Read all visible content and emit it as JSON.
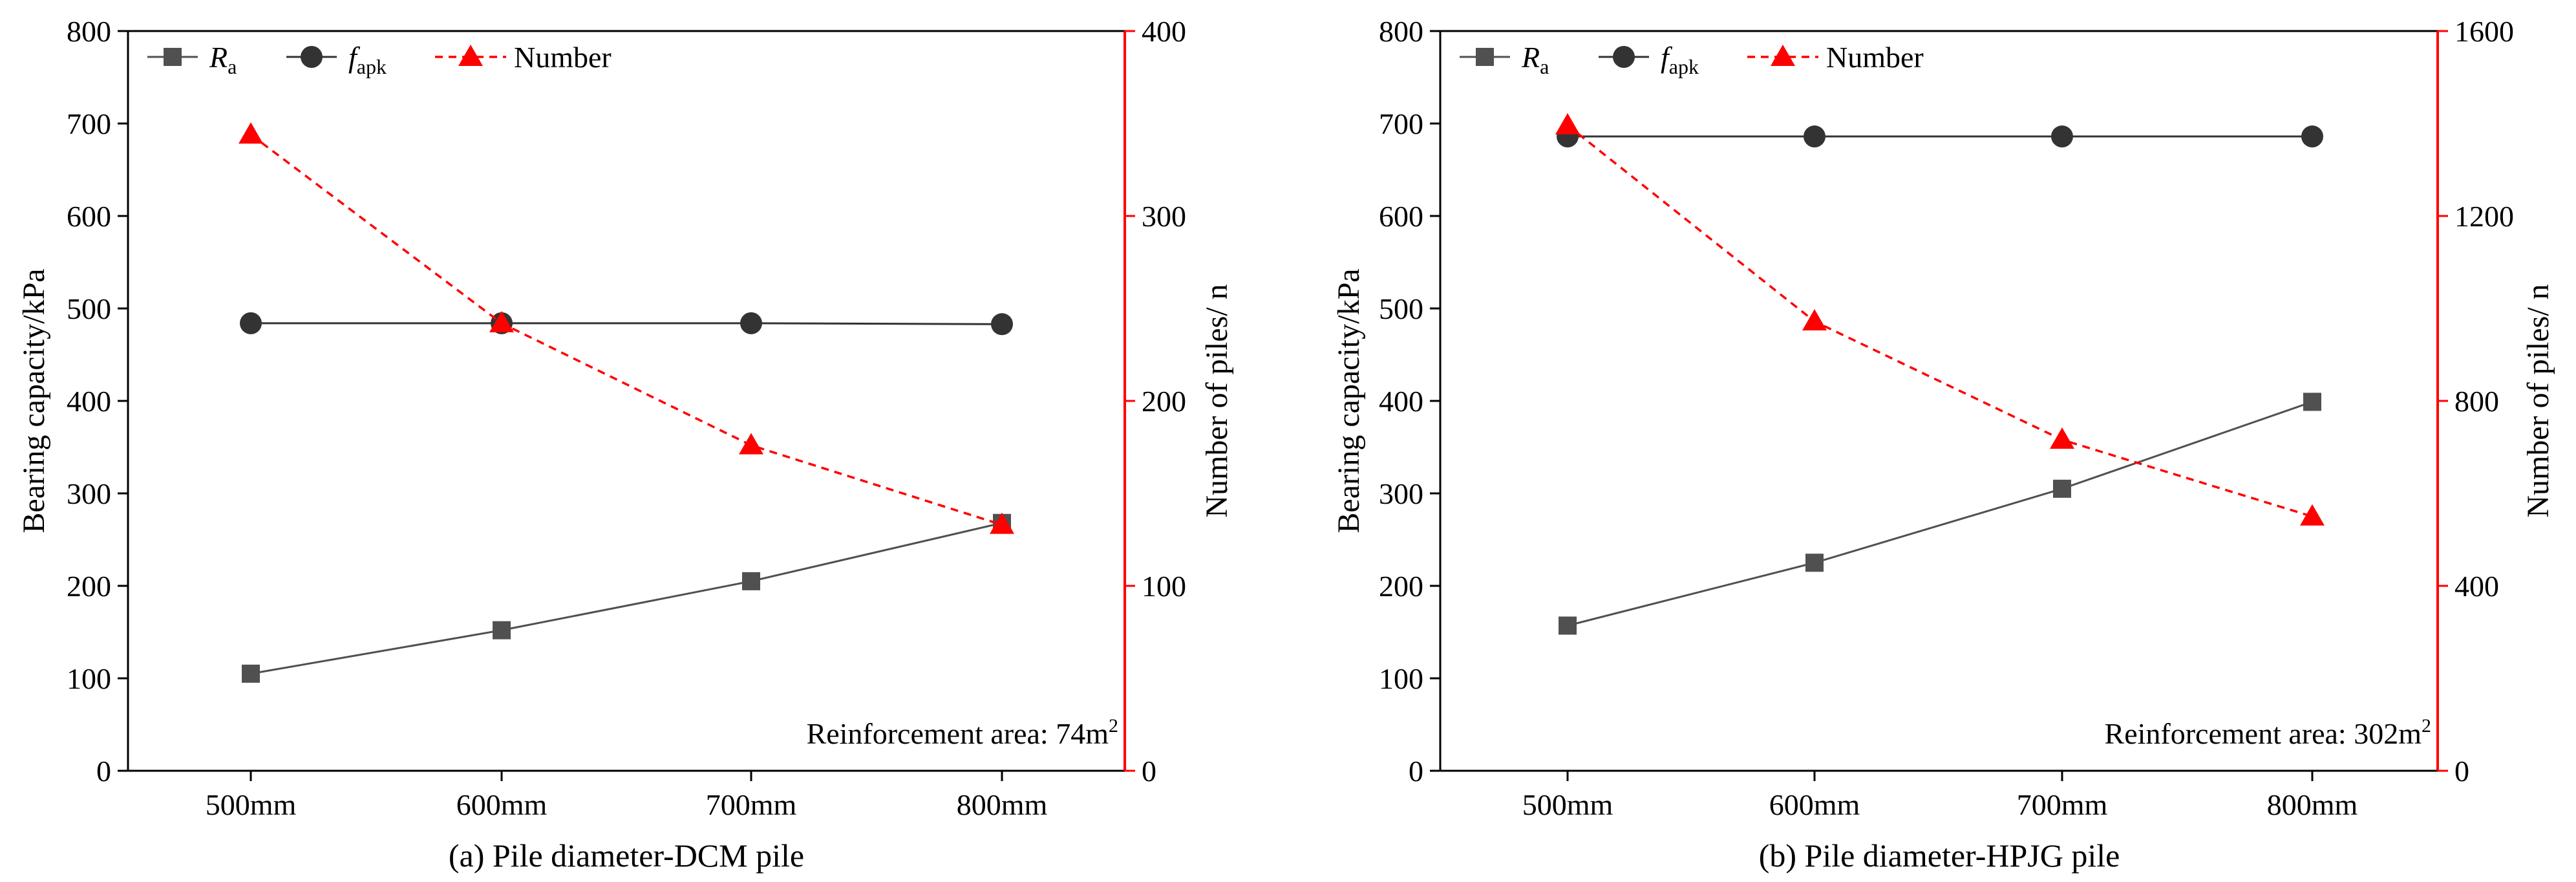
{
  "colors": {
    "ra": "#505050",
    "fapk": "#333333",
    "number": "#ff0000",
    "axis": "#000000",
    "right_axis": "#ff0000"
  },
  "chart_data": [
    {
      "type": "line",
      "caption": "(a) Pile diameter-DCM pile",
      "categories": [
        "500mm",
        "600mm",
        "700mm",
        "800mm"
      ],
      "ylabel_left": "Bearing capacity/kPa",
      "ylabel_right": "Number of piles/ n",
      "ylim_left": [
        0,
        800
      ],
      "yticks_left": [
        0,
        100,
        200,
        300,
        400,
        500,
        600,
        700,
        800
      ],
      "ylim_right": [
        0,
        400
      ],
      "yticks_right": [
        0,
        100,
        200,
        300,
        400
      ],
      "annotation": {
        "text": "Reinforcement area: 74m",
        "sup": "2"
      },
      "legend": {
        "ra": {
          "main": "R",
          "sub": "a"
        },
        "fapk": {
          "main": "f",
          "sub": "apk"
        },
        "number": {
          "main": "Number"
        }
      },
      "series": [
        {
          "name": "Ra",
          "axis": "left",
          "marker": "square",
          "values": [
            105,
            152,
            205,
            268
          ]
        },
        {
          "name": "fapk",
          "axis": "left",
          "marker": "circle",
          "values": [
            484,
            484,
            484,
            483
          ]
        },
        {
          "name": "Number",
          "axis": "right",
          "marker": "triangle",
          "values": [
            344,
            242,
            176,
            133
          ]
        }
      ]
    },
    {
      "type": "line",
      "caption": "(b) Pile diameter-HPJG pile",
      "categories": [
        "500mm",
        "600mm",
        "700mm",
        "800mm"
      ],
      "ylabel_left": "Bearing capacity/kPa",
      "ylabel_right": "Number of piles/ n",
      "ylim_left": [
        0,
        800
      ],
      "yticks_left": [
        0,
        100,
        200,
        300,
        400,
        500,
        600,
        700,
        800
      ],
      "ylim_right": [
        0,
        1600
      ],
      "yticks_right": [
        0,
        400,
        800,
        1200,
        1600
      ],
      "annotation": {
        "text": "Reinforcement area: 302m",
        "sup": "2"
      },
      "legend": {
        "ra": {
          "main": "R",
          "sub": "a"
        },
        "fapk": {
          "main": "f",
          "sub": "apk"
        },
        "number": {
          "main": "Number"
        }
      },
      "series": [
        {
          "name": "Ra",
          "axis": "left",
          "marker": "square",
          "values": [
            157,
            225,
            305,
            399
          ]
        },
        {
          "name": "fapk",
          "axis": "left",
          "marker": "circle",
          "values": [
            686,
            686,
            686,
            686
          ]
        },
        {
          "name": "Number",
          "axis": "right",
          "marker": "triangle",
          "values": [
            1396,
            972,
            716,
            550
          ]
        }
      ]
    }
  ]
}
